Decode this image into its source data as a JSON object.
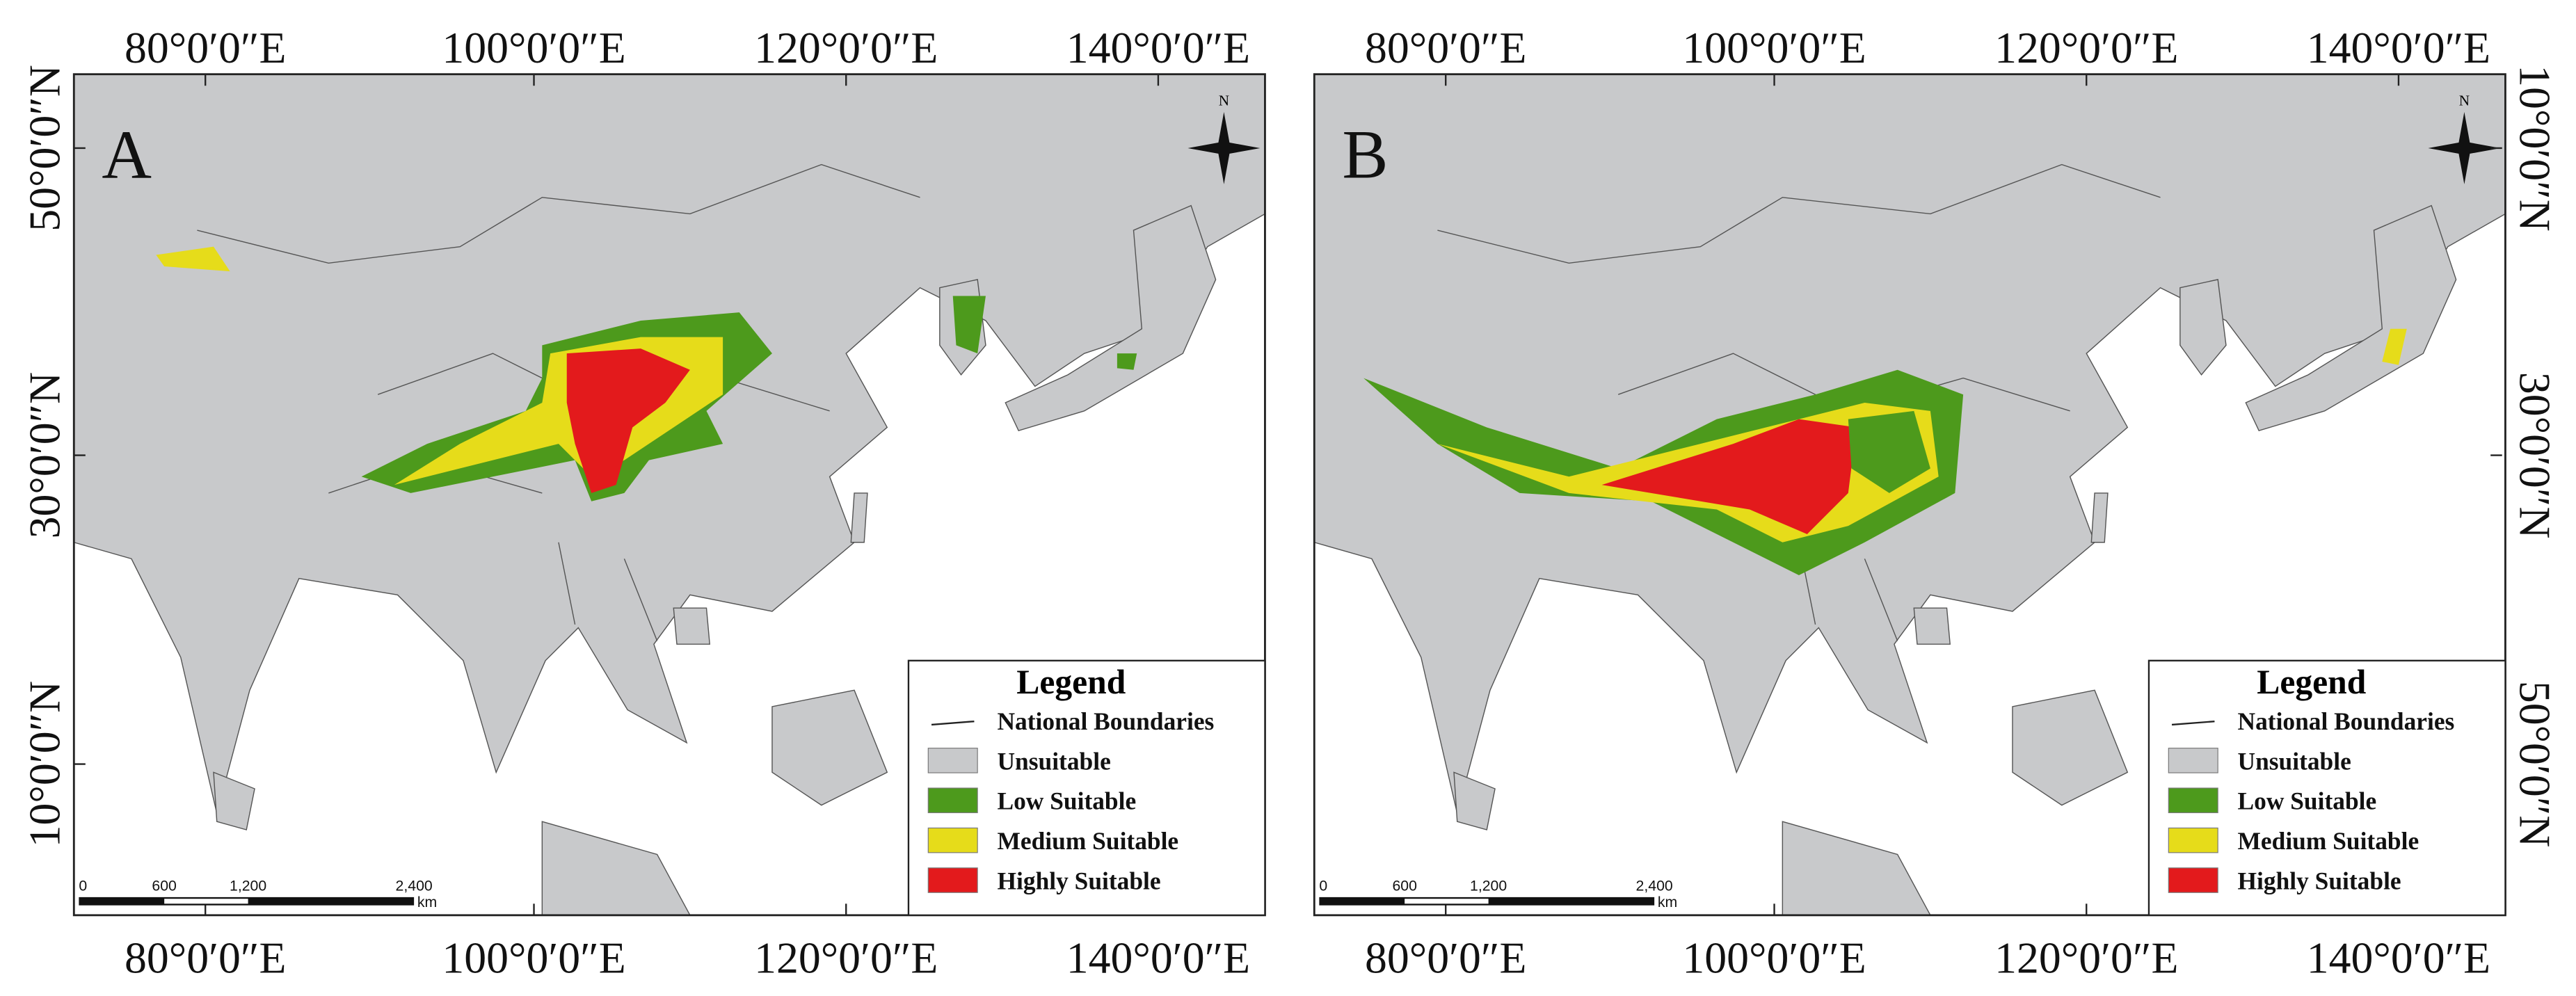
{
  "panels": [
    {
      "label": "A",
      "top_labels": [
        "80°0′0″E",
        "100°0′0″E",
        "120°0′0″E",
        "140°0′0″E"
      ],
      "bottom_labels": [
        "80°0′0″E",
        "100°0′0″E",
        "120°0′0″E",
        "140°0′0″E"
      ],
      "side_labels": [
        "50°0′0″N",
        "30°0′0″N",
        "10°0′0″N"
      ],
      "legend": {
        "title": "Legend",
        "items": [
          "National Boundaries",
          "Unsuitable",
          "Low Suitable",
          "Medium Suitable",
          "Highly  Suitable"
        ]
      },
      "scale_bar": {
        "ticks": [
          "0",
          "600",
          "1,200",
          "2,400"
        ],
        "unit": "km"
      }
    },
    {
      "label": "B",
      "top_labels": [
        "80°0′0″E",
        "100°0′0″E",
        "120°0′0″E",
        "140°0′0″E"
      ],
      "bottom_labels": [
        "80°0′0″E",
        "100°0′0″E",
        "120°0′0″E",
        "140°0′0″E"
      ],
      "side_labels": [
        "10°0′0″N",
        "30°0′0″N",
        "50°0′0″N"
      ],
      "legend": {
        "title": "Legend",
        "items": [
          "National Boundaries",
          "Unsuitable",
          "Low Suitable",
          "Medium Suitable",
          "Highly  Suitable"
        ]
      },
      "scale_bar": {
        "ticks": [
          "0",
          "600",
          "1,200",
          "2,400"
        ],
        "unit": "km"
      }
    }
  ]
}
